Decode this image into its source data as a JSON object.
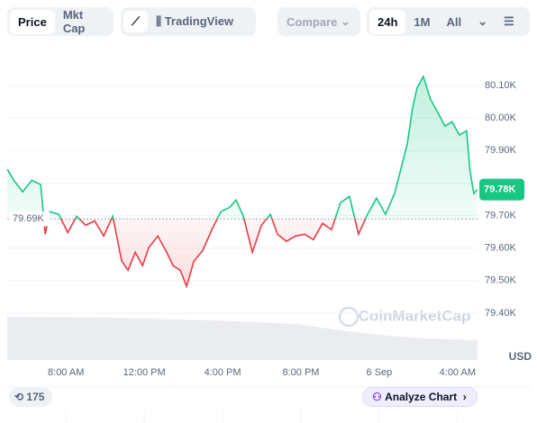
{
  "ui": {
    "tabs": [
      "Price",
      "Mkt Cap"
    ],
    "tradingview": "TradingView",
    "compare": "Compare",
    "ranges": [
      "24h",
      "1M",
      "All"
    ],
    "badge": "175",
    "analyze": "Analyze Chart"
  },
  "chart_data": {
    "type": "line",
    "unit": "USD",
    "watermark": "CoinMarketCap",
    "x": [
      5.01,
      5.33,
      5.79,
      6.25,
      6.71,
      6.94,
      7.17,
      7.63,
      8.09,
      8.55,
      9.01,
      9.47,
      9.93,
      10.39,
      10.85,
      11.17,
      11.54,
      11.91,
      12.23,
      12.69,
      13.15,
      13.47,
      13.84,
      14.16,
      14.53,
      14.99,
      15.45,
      15.91,
      16.37,
      16.69,
      17.06,
      17.52,
      17.98,
      18.44,
      18.8,
      19.26,
      19.72,
      20.18,
      20.64,
      21.1,
      21.56,
      22.02,
      22.48,
      22.94,
      23.4,
      23.86,
      24.32,
      24.78,
      25.1,
      25.43,
      25.7,
      25.93,
      26.25,
      26.62,
      26.99,
      27.36,
      27.72,
      28.09,
      28.46,
      28.64,
      28.83,
      29.01
    ],
    "series": [
      {
        "name": "Price",
        "color": "#16c784",
        "down_color": "#ea3943",
        "values": [
          79842,
          79809,
          79773,
          79809,
          79795,
          79643,
          79712,
          79704,
          79648,
          79698,
          79670,
          79684,
          79637,
          79698,
          79560,
          79532,
          79587,
          79546,
          79601,
          79637,
          79587,
          79546,
          79532,
          79482,
          79560,
          79593,
          79657,
          79712,
          79726,
          79748,
          79698,
          79587,
          79670,
          79704,
          79643,
          79621,
          79637,
          79643,
          79626,
          79676,
          79657,
          79740,
          79759,
          79643,
          79704,
          79754,
          79704,
          79768,
          79842,
          79920,
          80031,
          80092,
          80128,
          80058,
          80017,
          79975,
          79989,
          79948,
          79961,
          79837,
          79768,
          79780
        ]
      }
    ],
    "baseline": {
      "value": 79690,
      "label": "79.69K"
    },
    "last_price": {
      "value": 79780,
      "label": "79.78K"
    },
    "xlim": [
      5,
      29.02
    ],
    "xticks": [
      {
        "value": 8,
        "label": "8:00 AM"
      },
      {
        "value": 12,
        "label": "12:00 PM"
      },
      {
        "value": 16,
        "label": "4:00 PM"
      },
      {
        "value": 20,
        "label": "8:00 PM"
      },
      {
        "value": 24,
        "label": "6 Sep"
      },
      {
        "value": 28,
        "label": "4:00 AM"
      }
    ],
    "ylim": [
      79256,
      80197
    ],
    "yticks": [
      {
        "value": 79400,
        "label": "79.40K"
      },
      {
        "value": 79500,
        "label": "79.50K"
      },
      {
        "value": 79600,
        "label": "79.60K"
      },
      {
        "value": 79700,
        "label": "79.70K"
      },
      {
        "value": 79800,
        "label": "79.80K"
      },
      {
        "value": 79900,
        "label": "79.90K"
      },
      {
        "value": 80000,
        "label": "80.00K"
      },
      {
        "value": 80100,
        "label": "80.10K"
      }
    ],
    "grid": true
  }
}
